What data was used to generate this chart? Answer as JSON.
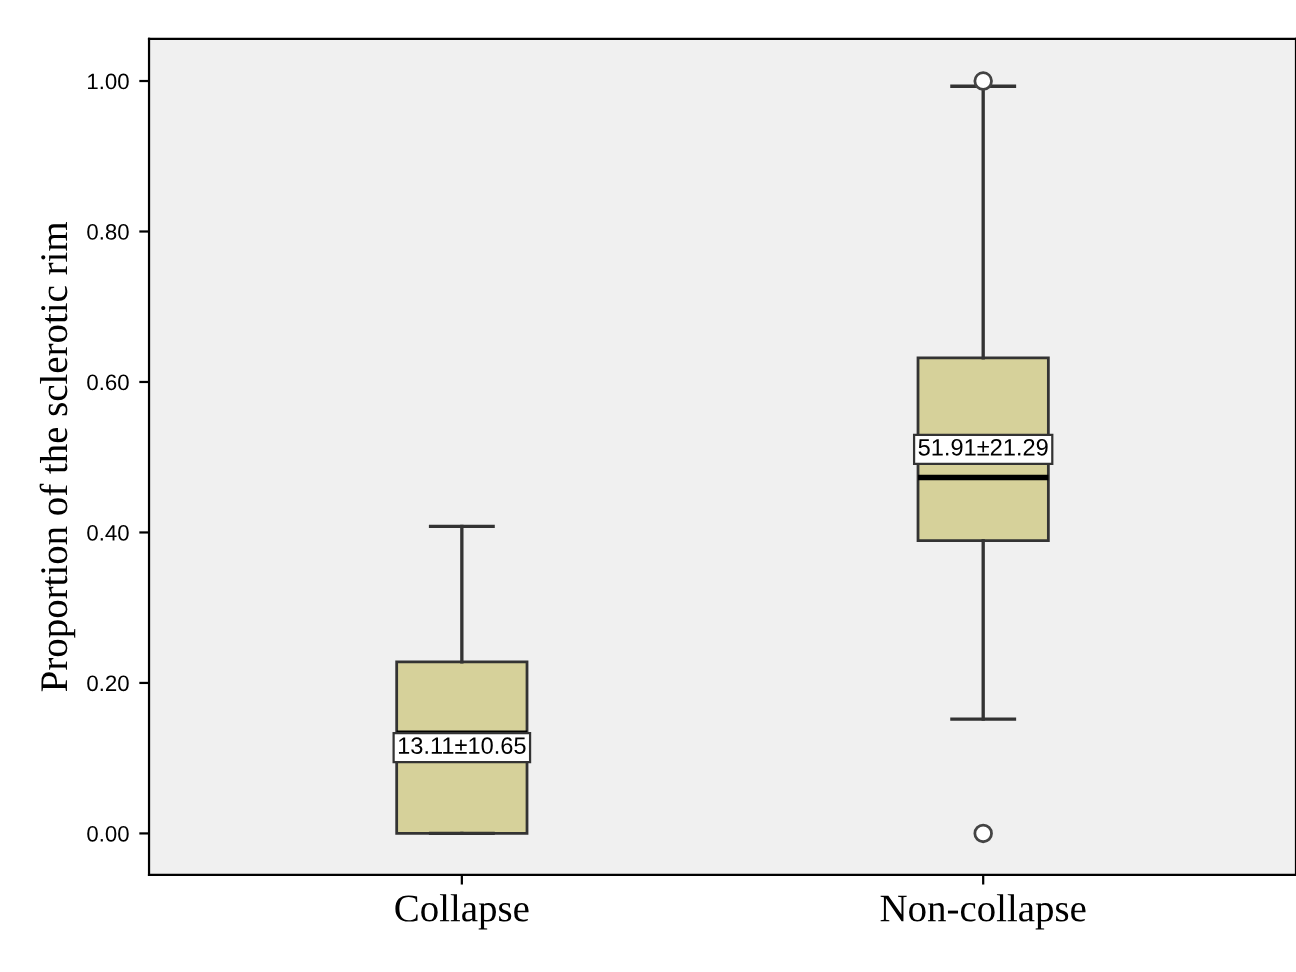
{
  "chart_data": {
    "type": "box",
    "ylabel": "Proportion of the sclerotic rim",
    "categories": [
      "Collapse",
      "Non-collapse"
    ],
    "color": "#d6d19a",
    "boxes": [
      {
        "low": 0.0,
        "q1": 0.0,
        "median": 0.133,
        "q3": 0.228,
        "high": 0.408
      },
      {
        "low": 0.152,
        "q1": 0.389,
        "median": 0.473,
        "q3": 0.632,
        "high": 0.993,
        "outliers": [
          1.0,
          0.0
        ]
      }
    ],
    "ylim": [
      -0.055,
      1.056
    ],
    "yticks": [
      {
        "value": 0,
        "label": "0.00"
      },
      {
        "value": 0.2,
        "label": "0.20"
      },
      {
        "value": 0.4,
        "label": "0.40"
      },
      {
        "value": 0.6,
        "label": "0.60"
      },
      {
        "value": 0.8,
        "label": "0.80"
      },
      {
        "value": 1.0,
        "label": "1.00"
      }
    ],
    "annotations": [
      "13.11±10.65",
      "51.91±21.29"
    ],
    "grid": false,
    "legend": false
  }
}
